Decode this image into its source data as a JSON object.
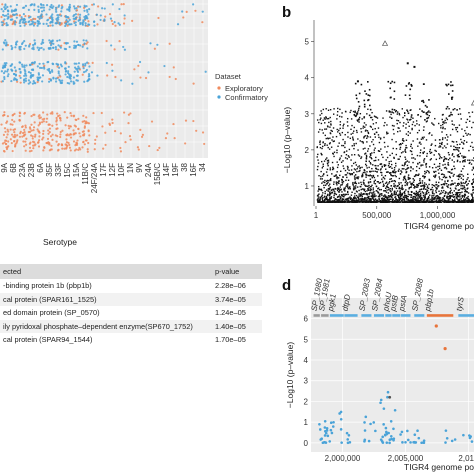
{
  "panel_labels": {
    "b": "b",
    "d": "d"
  },
  "table": {
    "headers": [
      "ected",
      "p-value"
    ],
    "rows": [
      {
        "name": "-binding protein 1b (pbp1b)",
        "pvalue": "2.28e–06"
      },
      {
        "name": "cal protein (SPAR161_1525)",
        "pvalue": "3.74e–05"
      },
      {
        "name": "ed domain protein (SP_0570)",
        "pvalue": "1.24e–05"
      },
      {
        "name": "ily pyridoxal phosphate–dependent enzyme(SP670_1752)",
        "pvalue": "1.40e–05"
      },
      {
        "name": "cal protein (SPAR94_1544)",
        "pvalue": "1.70e–05"
      }
    ]
  },
  "colors": {
    "exploratory": "#f08a5d",
    "confirmatory": "#4aa3d8",
    "panel_bg": "#ebebeb",
    "gene_gray": "#9a9a9a",
    "gene_orange": "#e8743b",
    "gene_blue": "#5aaee0"
  },
  "chart_data": [
    {
      "type": "scatter",
      "panel": "a",
      "xlabel": "Serotype",
      "ylabel": "",
      "categories": [
        "9A",
        "6B",
        "23A",
        "23B",
        "6A",
        "35F",
        "33F",
        "15C",
        "15A",
        "11B/C",
        "24F/24A",
        "17F",
        "12F",
        "10F",
        "1N",
        "9V",
        "24A",
        "15B/C",
        "14F",
        "19F",
        "38",
        "16F",
        "34"
      ],
      "series": [
        {
          "name": "Exploratory",
          "color": "#f08a5d"
        },
        {
          "name": "Confirmatory",
          "color": "#4aa3d8"
        }
      ],
      "legend": {
        "title": "Dataset",
        "entries": [
          "Exploratory",
          "Confirmatory"
        ],
        "placement": "right"
      },
      "grid": true
    },
    {
      "type": "scatter",
      "panel": "b",
      "xlabel": "TIGR4 genome pos",
      "ylabel": "−Log10 (p–value)",
      "x_ticks": [
        "1",
        "500,000",
        "1,000,000"
      ],
      "y_ticks": [
        "1",
        "2",
        "3",
        "4",
        "5"
      ],
      "xlim": [
        1,
        1300000
      ],
      "ylim": [
        0.5,
        5.6
      ],
      "highlights": [
        {
          "x": 568000,
          "y": 4.95,
          "shape": "triangle"
        },
        {
          "x": 755000,
          "y": 4.4
        },
        {
          "x": 810000,
          "y": 4.3
        },
        {
          "x": 345000,
          "y": 3.9
        },
        {
          "x": 1300000,
          "y": 3.3,
          "shape": "triangle"
        }
      ]
    },
    {
      "type": "scatter",
      "panel": "d",
      "xlabel": "TIGR4 genome pos",
      "ylabel": "−Log10 (p–value)",
      "x_ticks": [
        "2,000,000",
        "2,005,000",
        "2,010"
      ],
      "y_ticks": [
        "0",
        "1",
        "2",
        "3",
        "4",
        "5",
        "6"
      ],
      "xlim": [
        1997500,
        2011000
      ],
      "ylim": [
        -0.2,
        6.8
      ],
      "genes": [
        {
          "label": "SP_1980",
          "start": 1997700,
          "end": 1998200,
          "color": "gray"
        },
        {
          "label": "SP_1981",
          "start": 1998300,
          "end": 1998900,
          "color": "gray"
        },
        {
          "label": "pgk1",
          "start": 1999000,
          "end": 2000100,
          "color": "blue"
        },
        {
          "label": "dtpD",
          "start": 2000150,
          "end": 2001200,
          "color": "blue"
        },
        {
          "label": "SP_2083",
          "start": 2001500,
          "end": 2002300,
          "color": "blue"
        },
        {
          "label": "SP_2084",
          "start": 2002500,
          "end": 2003300,
          "color": "blue"
        },
        {
          "label": "phoU",
          "start": 2003400,
          "end": 2003900,
          "color": "blue"
        },
        {
          "label": "pstB",
          "start": 2003950,
          "end": 2004600,
          "color": "blue"
        },
        {
          "label": "pstA",
          "start": 2004650,
          "end": 2005400,
          "color": "blue"
        },
        {
          "label": "SP_2088",
          "start": 2005700,
          "end": 2006500,
          "color": "blue"
        },
        {
          "label": "pbp1b",
          "start": 2006700,
          "end": 2008800,
          "color": "orange"
        },
        {
          "label": "tyrS",
          "start": 2009200,
          "end": 2011000,
          "color": "blue"
        }
      ],
      "highlights": [
        {
          "x": 2007450,
          "y": 5.64,
          "color": "#e8743b"
        },
        {
          "x": 2008150,
          "y": 4.55,
          "color": "#e8743b"
        }
      ]
    }
  ]
}
